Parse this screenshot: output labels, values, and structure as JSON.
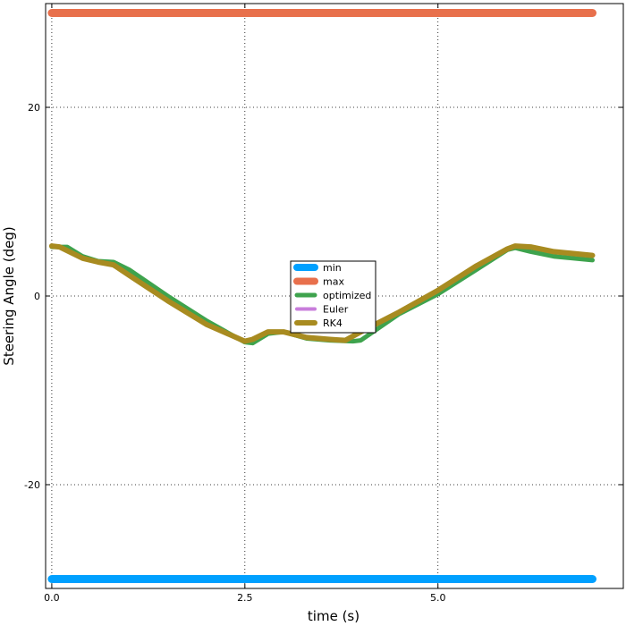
{
  "chart_data": {
    "type": "line",
    "xlabel": "time (s)",
    "ylabel": "Steering Angle (deg)",
    "xlim": [
      -0.08,
      7.4
    ],
    "ylim": [
      -31,
      31
    ],
    "xticks": [
      0.0,
      2.5,
      5.0
    ],
    "xtick_labels": [
      "0.0",
      "2.5",
      "5.0"
    ],
    "yticks": [
      -20,
      0,
      20
    ],
    "ytick_labels": [
      "-20",
      "0",
      "20"
    ],
    "grid": true,
    "legend_position": "center",
    "series": [
      {
        "name": "min",
        "color": "#00a0ff",
        "width": 9,
        "x": [
          0.0,
          7.0
        ],
        "y": [
          -30,
          -30
        ]
      },
      {
        "name": "max",
        "color": "#e8704c",
        "width": 9,
        "x": [
          0.0,
          7.0
        ],
        "y": [
          30,
          30
        ]
      },
      {
        "name": "optimized",
        "color": "#3ea34d",
        "width": 5,
        "x": [
          0.0,
          0.2,
          0.4,
          0.6,
          0.8,
          1.0,
          1.5,
          2.0,
          2.5,
          2.6,
          2.8,
          3.0,
          3.3,
          3.6,
          3.9,
          4.0,
          4.5,
          5.0,
          5.5,
          5.9,
          6.0,
          6.2,
          6.5,
          7.0
        ],
        "y": [
          5.2,
          5.2,
          4.2,
          3.7,
          3.6,
          2.8,
          0.0,
          -2.6,
          -4.9,
          -5.0,
          -4.0,
          -3.8,
          -4.5,
          -4.7,
          -4.8,
          -4.7,
          -1.9,
          0.2,
          2.8,
          4.9,
          5.1,
          4.7,
          4.2,
          3.8
        ]
      },
      {
        "name": "Euler",
        "color": "#c87ddb",
        "width": 4,
        "x": [
          0.0,
          0.1,
          0.4,
          0.6,
          0.8,
          1.0,
          1.5,
          2.0,
          2.5,
          2.6,
          2.8,
          3.0,
          3.3,
          3.6,
          3.8,
          4.0,
          4.5,
          5.0,
          5.5,
          5.9,
          6.0,
          6.2,
          6.5,
          7.0
        ],
        "y": [
          5.3,
          5.2,
          4.0,
          3.6,
          3.3,
          2.2,
          -0.5,
          -3.0,
          -4.8,
          -4.6,
          -3.8,
          -3.8,
          -4.4,
          -4.6,
          -4.7,
          -3.8,
          -1.7,
          0.6,
          3.2,
          5.0,
          5.3,
          5.2,
          4.7,
          4.3
        ]
      },
      {
        "name": "RK4",
        "color": "#a88b20",
        "width": 6,
        "x": [
          0.0,
          0.1,
          0.4,
          0.6,
          0.8,
          1.0,
          1.5,
          2.0,
          2.5,
          2.6,
          2.8,
          3.0,
          3.3,
          3.6,
          3.8,
          4.0,
          4.5,
          5.0,
          5.5,
          5.9,
          6.0,
          6.2,
          6.5,
          7.0
        ],
        "y": [
          5.3,
          5.2,
          4.0,
          3.6,
          3.3,
          2.2,
          -0.5,
          -3.0,
          -4.8,
          -4.6,
          -3.8,
          -3.8,
          -4.4,
          -4.6,
          -4.7,
          -3.8,
          -1.7,
          0.6,
          3.2,
          5.0,
          5.3,
          5.2,
          4.7,
          4.3
        ]
      }
    ]
  }
}
